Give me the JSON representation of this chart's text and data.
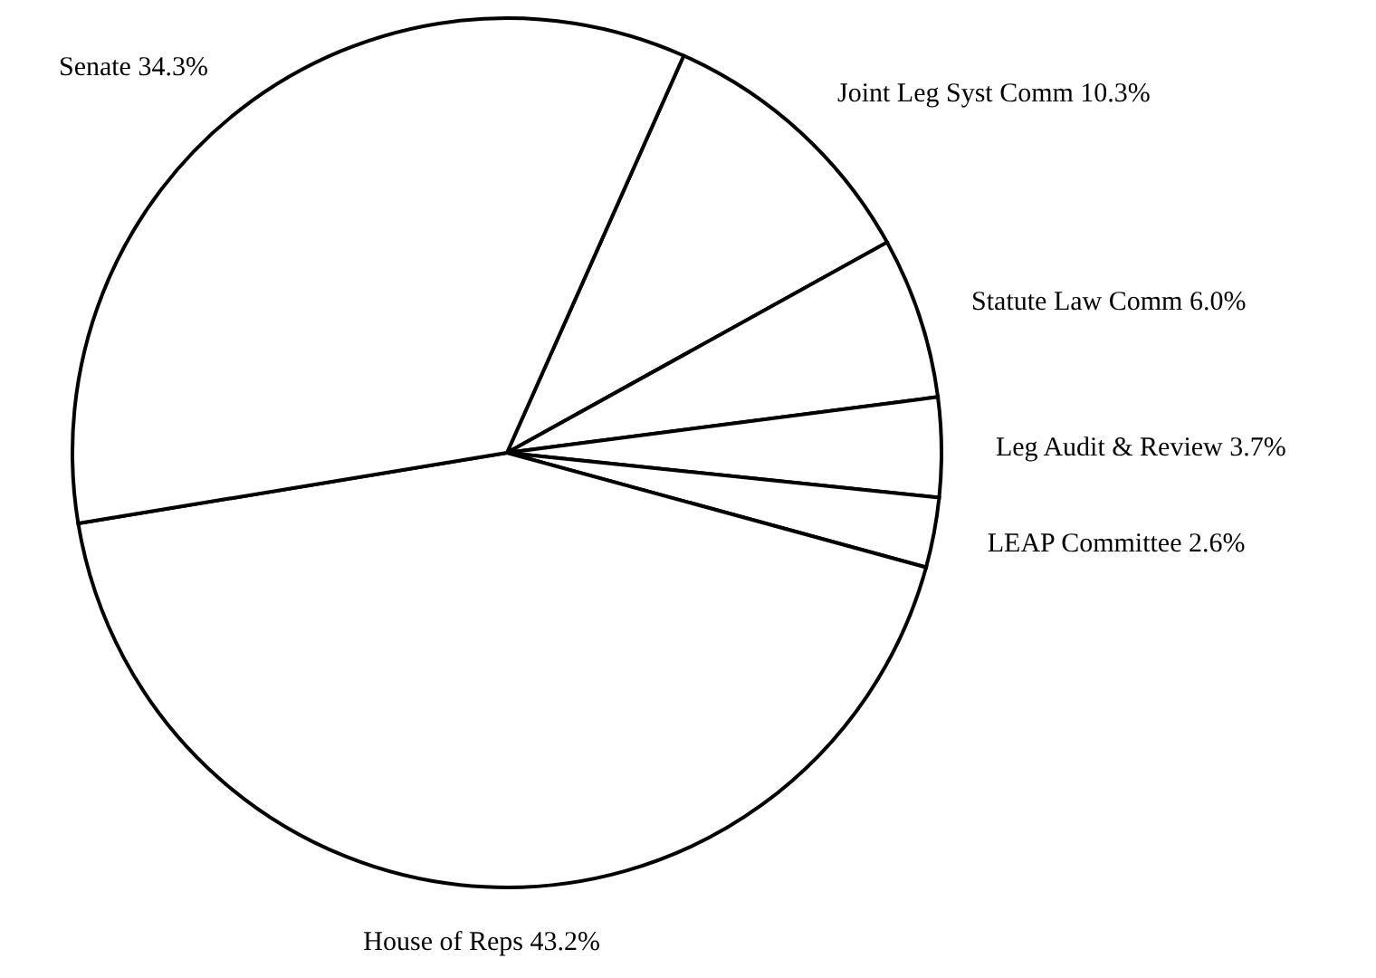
{
  "chart_data": {
    "type": "pie",
    "categories": [
      "Joint Leg Syst Comm",
      "Statute Law Comm",
      "Leg Audit & Review",
      "LEAP Committee",
      "House of Reps",
      "Senate"
    ],
    "values": [
      10.3,
      6.0,
      3.7,
      2.6,
      43.2,
      34.3
    ],
    "value_labels": [
      "10.3%",
      "6.0%",
      "3.7%",
      "2.6%",
      "43.2%",
      "34.3%"
    ],
    "colors": [
      "#ffffff",
      "#ffffff",
      "#ffffff",
      "#ffffff",
      "#ffffff",
      "#ffffff"
    ]
  }
}
